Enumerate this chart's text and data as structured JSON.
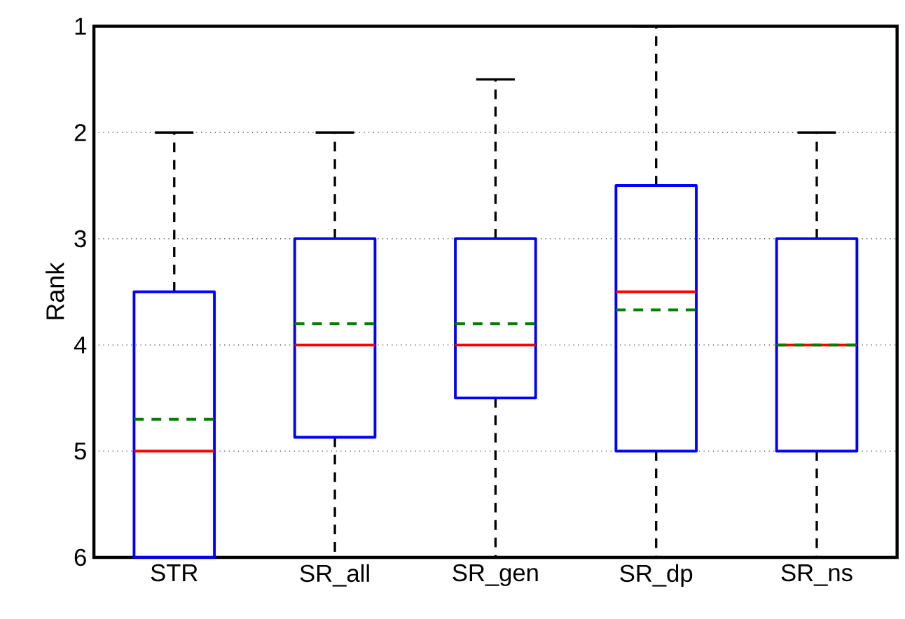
{
  "chart_data": {
    "type": "box",
    "ylabel": "Rank",
    "categories": [
      "STR",
      "SR_all",
      "SR_gen",
      "SR_dp",
      "SR_ns"
    ],
    "boxes": [
      {
        "low": 2,
        "q1": 3.5,
        "median": 5,
        "q3": 6,
        "high": 6,
        "mean": 4.7
      },
      {
        "low": 2,
        "q1": 3,
        "median": 4,
        "q3": 4.87,
        "high": 6,
        "mean": 3.8
      },
      {
        "low": 1.5,
        "q1": 3,
        "median": 4,
        "q3": 4.5,
        "high": 6,
        "mean": 3.8
      },
      {
        "low": 1,
        "q1": 2.5,
        "median": 3.5,
        "q3": 5,
        "high": 6,
        "mean": 3.67
      },
      {
        "low": 2,
        "q1": 3,
        "median": 4,
        "q3": 5,
        "high": 6,
        "mean": 4
      }
    ],
    "color": "#0000ff",
    "ylim": [
      6,
      1
    ],
    "yticks": [
      1,
      2,
      3,
      4,
      5,
      6
    ],
    "grid": "y"
  }
}
